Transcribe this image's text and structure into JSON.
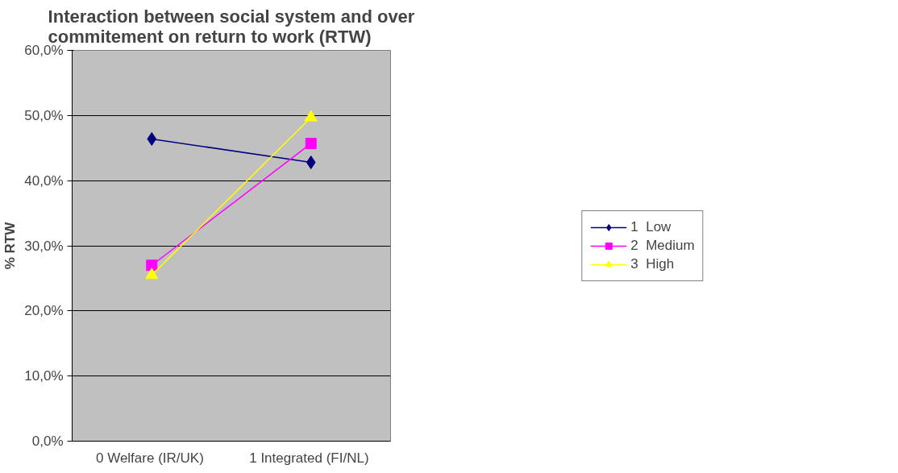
{
  "chart_data": {
    "type": "line",
    "title": "Interaction between social system and over commitement on return to work (RTW)",
    "ylabel": "% RTW",
    "categories": [
      "0  Welfare (IR/UK)",
      "1  Integrated (FI/NL)"
    ],
    "ylim": [
      0,
      60
    ],
    "yticks": [
      {
        "value": 0,
        "label": "0,0%"
      },
      {
        "value": 10,
        "label": "10,0%"
      },
      {
        "value": 20,
        "label": "20,0%"
      },
      {
        "value": 30,
        "label": "30,0%"
      },
      {
        "value": 40,
        "label": "40,0%"
      },
      {
        "value": 50,
        "label": "50,0%"
      },
      {
        "value": 60,
        "label": "60,0%"
      }
    ],
    "grid": "y",
    "legend": "right",
    "line_style": "solid",
    "series": [
      {
        "name": "1  Low",
        "color": "#000080",
        "marker": "diamond",
        "values": [
          46.4,
          42.8
        ]
      },
      {
        "name": "2  Medium",
        "color": "#ff00ff",
        "marker": "square",
        "values": [
          27.0,
          45.7
        ]
      },
      {
        "name": "3  High",
        "color": "#ffff00",
        "marker": "triangle",
        "values": [
          25.5,
          49.7
        ]
      }
    ]
  }
}
